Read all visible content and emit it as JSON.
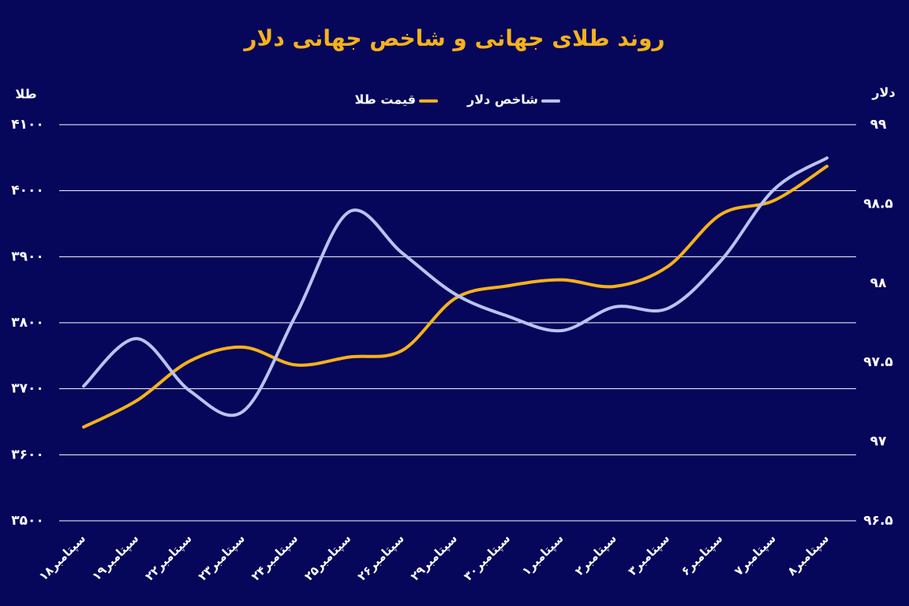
{
  "chart_data": {
    "type": "line",
    "title": "روند طلای جهانی و شاخص جهانی دلار",
    "y_label": "طلا",
    "y2_label": "دلار",
    "categories": [
      "۱۸سپتامبر",
      "۱۹سپتامبر",
      "۲۲سپتامبر",
      "۲۳سپتامبر",
      "۲۴سپتامبر",
      "۲۵سپتامبر",
      "۲۶سپتامبر",
      "۲۹سپتامبر",
      "۳۰سپتامبر",
      "۱سپتامبر",
      "۲سپتامبر",
      "۳سپتامبر",
      "۶سپتامبر",
      "۷سپتامبر",
      "۸سپتامبر"
    ],
    "series": [
      {
        "name": "قیمت طلا",
        "color": "#f5b21b",
        "values": [
          3642,
          3682,
          3742,
          3763,
          3736,
          3748,
          3758,
          3837,
          3856,
          3865,
          3855,
          3885,
          3964,
          3985,
          4037
        ]
      },
      {
        "name": "شاخص دلار",
        "color": "#b9c3f2",
        "axis": "y2",
        "values": [
          97.35,
          97.65,
          97.32,
          97.19,
          97.8,
          98.45,
          98.19,
          97.93,
          97.79,
          97.7,
          97.85,
          97.84,
          98.14,
          98.59,
          98.79
        ]
      }
    ],
    "ylim": [
      3500,
      4100
    ],
    "yticks": [
      {
        "value": 3500,
        "label": "۳۵۰۰"
      },
      {
        "value": 3600,
        "label": "۳۶۰۰"
      },
      {
        "value": 3700,
        "label": "۳۷۰۰"
      },
      {
        "value": 3800,
        "label": "۳۸۰۰"
      },
      {
        "value": 3900,
        "label": "۳۹۰۰"
      },
      {
        "value": 4000,
        "label": "۴۰۰۰"
      },
      {
        "value": 4100,
        "label": "۴۱۰۰"
      }
    ],
    "y2lim": [
      96.5,
      99
    ],
    "y2ticks": [
      {
        "value": 96.5,
        "label": "۹۶.۵"
      },
      {
        "value": 97,
        "label": "۹۷"
      },
      {
        "value": 97.5,
        "label": "۹۷.۵"
      },
      {
        "value": 98,
        "label": "۹۸"
      },
      {
        "value": 98.5,
        "label": "۹۸.۵"
      },
      {
        "value": 99,
        "label": "۹۹"
      }
    ],
    "grid": true
  }
}
